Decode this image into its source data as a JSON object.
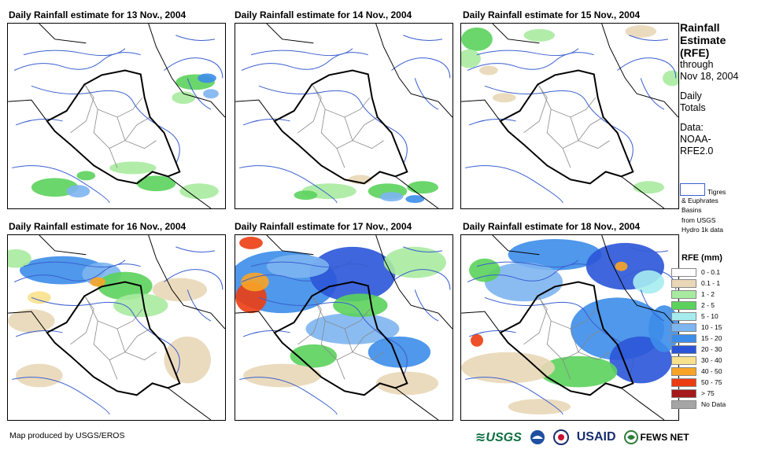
{
  "panels": [
    {
      "title": "Daily Rainfall estimate for 13 Nov., 2004"
    },
    {
      "title": "Daily Rainfall estimate for 14 Nov., 2004"
    },
    {
      "title": "Daily Rainfall estimate for 15 Nov., 2004"
    },
    {
      "title": "Daily Rainfall estimate for 16 Nov., 2004"
    },
    {
      "title": "Daily Rainfall estimate for 17 Nov., 2004"
    },
    {
      "title": "Daily Rainfall estimate for 18 Nov., 2004"
    }
  ],
  "sidebar": {
    "title_line1": "Rainfall",
    "title_line2": "Estimate",
    "title_line3": "(RFE)",
    "through": "through",
    "date": "Nov 18, 2004",
    "totals_line1": "Daily",
    "totals_line2": "Totals",
    "data_line1": "Data:",
    "data_line2": "NOAA-",
    "data_line3": "RFE2.0",
    "basin_line1": "Tigres",
    "basin_line2": "& Euphrates",
    "basin_line3": "Basins",
    "basin_line4": "from USGS",
    "basin_line5": "Hydro 1k data"
  },
  "legend": {
    "title": "RFE (mm)",
    "items": [
      {
        "label": "0 - 0.1",
        "color": "#ffffff"
      },
      {
        "label": "0.1 - 1",
        "color": "#e9d7b7"
      },
      {
        "label": "1 - 2",
        "color": "#a8eba0"
      },
      {
        "label": "2 - 5",
        "color": "#5bd25c"
      },
      {
        "label": "5 - 10",
        "color": "#a6ecef"
      },
      {
        "label": "10 - 15",
        "color": "#7db5f1"
      },
      {
        "label": "15 - 20",
        "color": "#3c8de9"
      },
      {
        "label": "20 - 30",
        "color": "#2a55d8"
      },
      {
        "label": "30 - 40",
        "color": "#f8e18c"
      },
      {
        "label": "40 - 50",
        "color": "#f7a426"
      },
      {
        "label": "50 - 75",
        "color": "#ec3d12"
      },
      {
        "label": "> 75",
        "color": "#a51a1a"
      },
      {
        "label": "No Data",
        "color": "#a5a5a5"
      }
    ]
  },
  "footer": {
    "credit": "Map produced by USGS/EROS"
  },
  "logos": {
    "usgs": "USGS",
    "usaid": "USAID",
    "fews": "FEWS NET"
  }
}
